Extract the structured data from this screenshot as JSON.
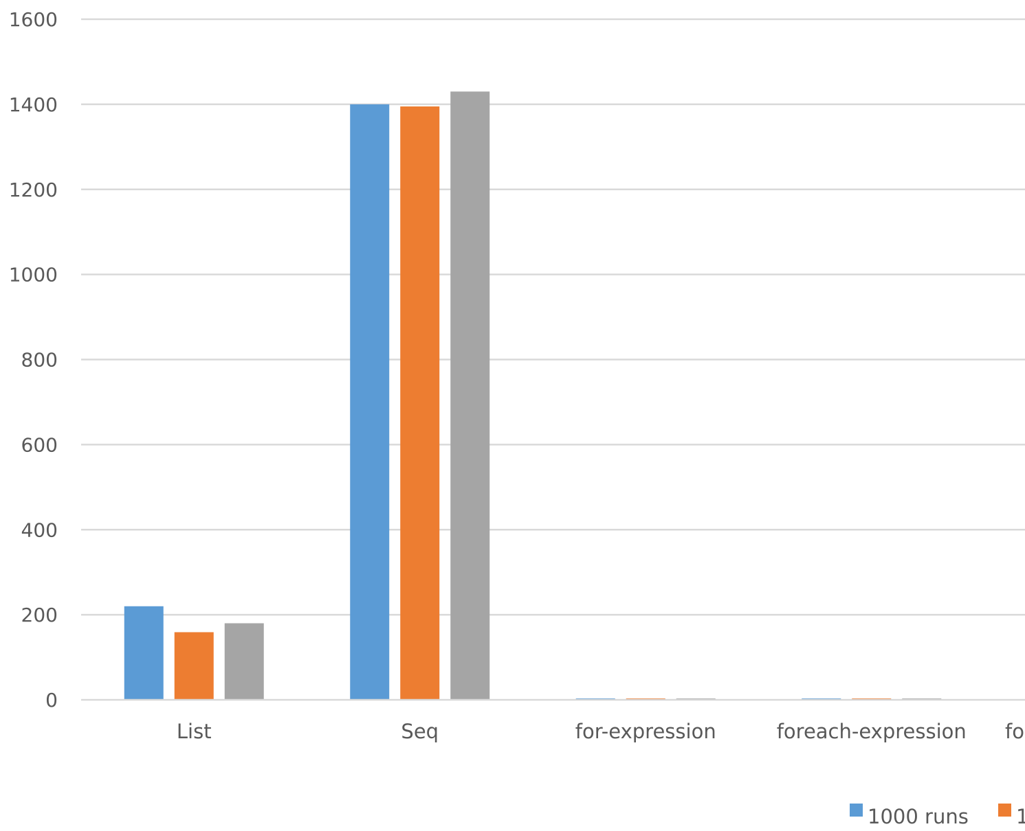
{
  "chart_data": {
    "type": "bar",
    "categories": [
      "List",
      "Seq",
      "for-expression",
      "foreach-expression",
      "fo"
    ],
    "series": [
      {
        "name": "1000 runs",
        "color": "#5b9bd5",
        "values": [
          220,
          1400,
          3,
          3,
          null
        ]
      },
      {
        "name": "1",
        "color": "#ed7d31",
        "values": [
          159,
          1395,
          3,
          3,
          null
        ]
      },
      {
        "name": "",
        "color": "#a5a5a5",
        "values": [
          180,
          1430,
          3,
          3,
          null
        ]
      }
    ],
    "y_ticks": [
      0,
      200,
      400,
      600,
      800,
      1000,
      1200,
      1400,
      1600
    ],
    "ylim": [
      0,
      1600
    ],
    "grid": true,
    "legend_position": "bottom-right",
    "title": "",
    "xlabel": "",
    "ylabel": ""
  }
}
